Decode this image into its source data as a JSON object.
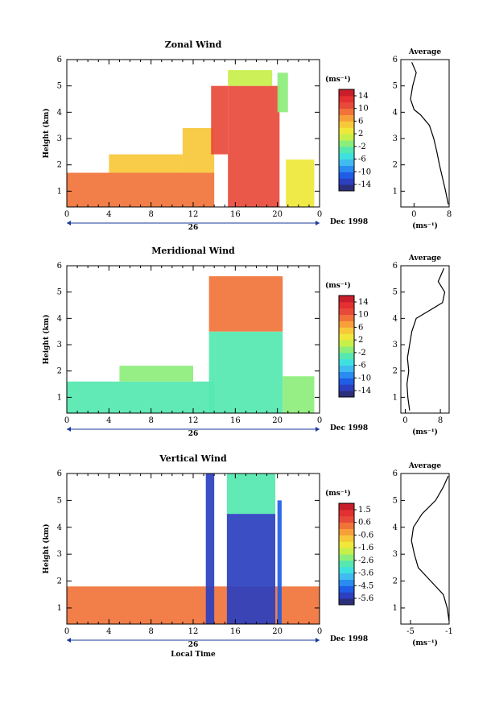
{
  "chart_data": [
    {
      "type": "heatmap",
      "title": "Zonal Wind",
      "ylabel": "Height (km)",
      "xticks": [
        "0",
        "4",
        "8",
        "12",
        "16",
        "20",
        "0"
      ],
      "day_label": "26",
      "date_label": "Dec 1998",
      "yticks": [
        "1",
        "2",
        "3",
        "4",
        "5",
        "6"
      ],
      "xlim": [
        0,
        24
      ],
      "ylim": [
        0.4,
        6
      ],
      "colorbar": {
        "unit": "(ms⁻¹)",
        "ticks": [
          "14",
          "10",
          "6",
          "2",
          "-2",
          "-6",
          "-10",
          "-14"
        ],
        "range": [
          -16,
          16
        ]
      },
      "regions": [
        {
          "x": [
            0,
            14
          ],
          "y": [
            0.4,
            1.7
          ],
          "value": 8
        },
        {
          "x": [
            4,
            11
          ],
          "y": [
            1.7,
            2.4
          ],
          "value": 5
        },
        {
          "x": [
            11,
            14
          ],
          "y": [
            1.7,
            3.4
          ],
          "value": 5
        },
        {
          "x": [
            13.7,
            15.3
          ],
          "y": [
            2.4,
            5.0
          ],
          "value": 10
        },
        {
          "x": [
            15.3,
            20.2
          ],
          "y": [
            0.4,
            5.0
          ],
          "value": 10
        },
        {
          "x": [
            15.3,
            19.5
          ],
          "y": [
            5.0,
            5.6
          ],
          "value": 1
        },
        {
          "x": [
            20.8,
            23.5
          ],
          "y": [
            0.4,
            2.2
          ],
          "value": 3
        },
        {
          "x": [
            20,
            21
          ],
          "y": [
            4.0,
            5.5
          ],
          "value": -1
        }
      ],
      "profile": {
        "title": "Average",
        "xticks": [
          "0",
          "8"
        ],
        "xlabel": "(ms⁻¹)",
        "xlim": [
          -3,
          8
        ],
        "y": [
          0.5,
          1.0,
          1.5,
          2.0,
          2.5,
          3.0,
          3.5,
          3.9,
          4.1,
          4.5,
          5.0,
          5.5,
          5.9
        ],
        "x": [
          7.8,
          7.2,
          6.5,
          5.8,
          5.2,
          4.5,
          3.5,
          1.5,
          0.0,
          -0.8,
          -0.3,
          0.5,
          -0.5
        ]
      }
    },
    {
      "type": "heatmap",
      "title": "Meridional Wind",
      "ylabel": "Height (km)",
      "xticks": [
        "0",
        "4",
        "8",
        "12",
        "16",
        "20",
        "0"
      ],
      "day_label": "26",
      "date_label": "Dec 1998",
      "yticks": [
        "1",
        "2",
        "3",
        "4",
        "5",
        "6"
      ],
      "xlim": [
        0,
        24
      ],
      "ylim": [
        0.4,
        6
      ],
      "colorbar": {
        "unit": "(ms⁻¹)",
        "ticks": [
          "14",
          "10",
          "6",
          "2",
          "-2",
          "-6",
          "-10",
          "-14"
        ],
        "range": [
          -16,
          16
        ]
      },
      "regions": [
        {
          "x": [
            0,
            14
          ],
          "y": [
            0.4,
            1.6
          ],
          "value": -3
        },
        {
          "x": [
            5,
            12
          ],
          "y": [
            1.6,
            2.2
          ],
          "value": -2
        },
        {
          "x": [
            13.5,
            20.5
          ],
          "y": [
            0.4,
            3.5
          ],
          "value": -4
        },
        {
          "x": [
            13.5,
            20.5
          ],
          "y": [
            3.5,
            5.6
          ],
          "value": 9
        },
        {
          "x": [
            20.5,
            23.5
          ],
          "y": [
            0.4,
            1.8
          ],
          "value": -2
        }
      ],
      "profile": {
        "title": "Average",
        "xticks": [
          "0",
          "8"
        ],
        "xlabel": "(ms⁻¹)",
        "xlim": [
          -1,
          10
        ],
        "y": [
          0.5,
          1.0,
          1.5,
          2.0,
          2.5,
          3.0,
          3.5,
          4.0,
          4.3,
          4.6,
          5.0,
          5.4,
          5.9
        ],
        "x": [
          1.0,
          0.6,
          0.4,
          0.8,
          0.5,
          1.0,
          1.5,
          2.5,
          5.5,
          8.5,
          9.0,
          7.5,
          8.8
        ]
      }
    },
    {
      "type": "heatmap",
      "title": "Vertical Wind",
      "ylabel": "Height (km)",
      "xlabel": "Local Time",
      "xticks": [
        "0",
        "4",
        "8",
        "12",
        "16",
        "20",
        "0"
      ],
      "day_label": "26",
      "date_label": "Dec 1998",
      "yticks": [
        "1",
        "2",
        "3",
        "4",
        "5",
        "6"
      ],
      "xlim": [
        0,
        24
      ],
      "ylim": [
        0.4,
        6
      ],
      "colorbar": {
        "unit": "(ms⁻¹)",
        "ticks": [
          "1.5",
          "0.6",
          "-0.6",
          "-1.6",
          "-2.6",
          "-3.6",
          "-4.5",
          "-5.6"
        ],
        "range": [
          -6,
          2
        ]
      },
      "regions": [
        {
          "x": [
            0,
            24
          ],
          "y": [
            0.4,
            1.8
          ],
          "value": 0.2
        },
        {
          "x": [
            13.2,
            14.0
          ],
          "y": [
            0.4,
            6.0
          ],
          "value": -5.5
        },
        {
          "x": [
            15.2,
            19.8
          ],
          "y": [
            0.4,
            4.5
          ],
          "value": -5.5
        },
        {
          "x": [
            15.2,
            19.8
          ],
          "y": [
            4.5,
            6.0
          ],
          "value": -3.0
        },
        {
          "x": [
            20.0,
            20.4
          ],
          "y": [
            0.4,
            5.0
          ],
          "value": -5.0
        }
      ],
      "profile": {
        "title": "Average",
        "xticks": [
          "-5",
          "-1"
        ],
        "xlabel": "(ms⁻¹)",
        "xlim": [
          -6,
          -1
        ],
        "y": [
          0.5,
          1.0,
          1.5,
          2.0,
          2.5,
          3.0,
          3.5,
          4.0,
          4.5,
          5.0,
          5.5,
          5.9
        ],
        "x": [
          -1.0,
          -1.2,
          -1.6,
          -2.9,
          -4.2,
          -4.6,
          -4.9,
          -4.7,
          -3.8,
          -2.4,
          -1.6,
          -1.1
        ]
      }
    }
  ]
}
